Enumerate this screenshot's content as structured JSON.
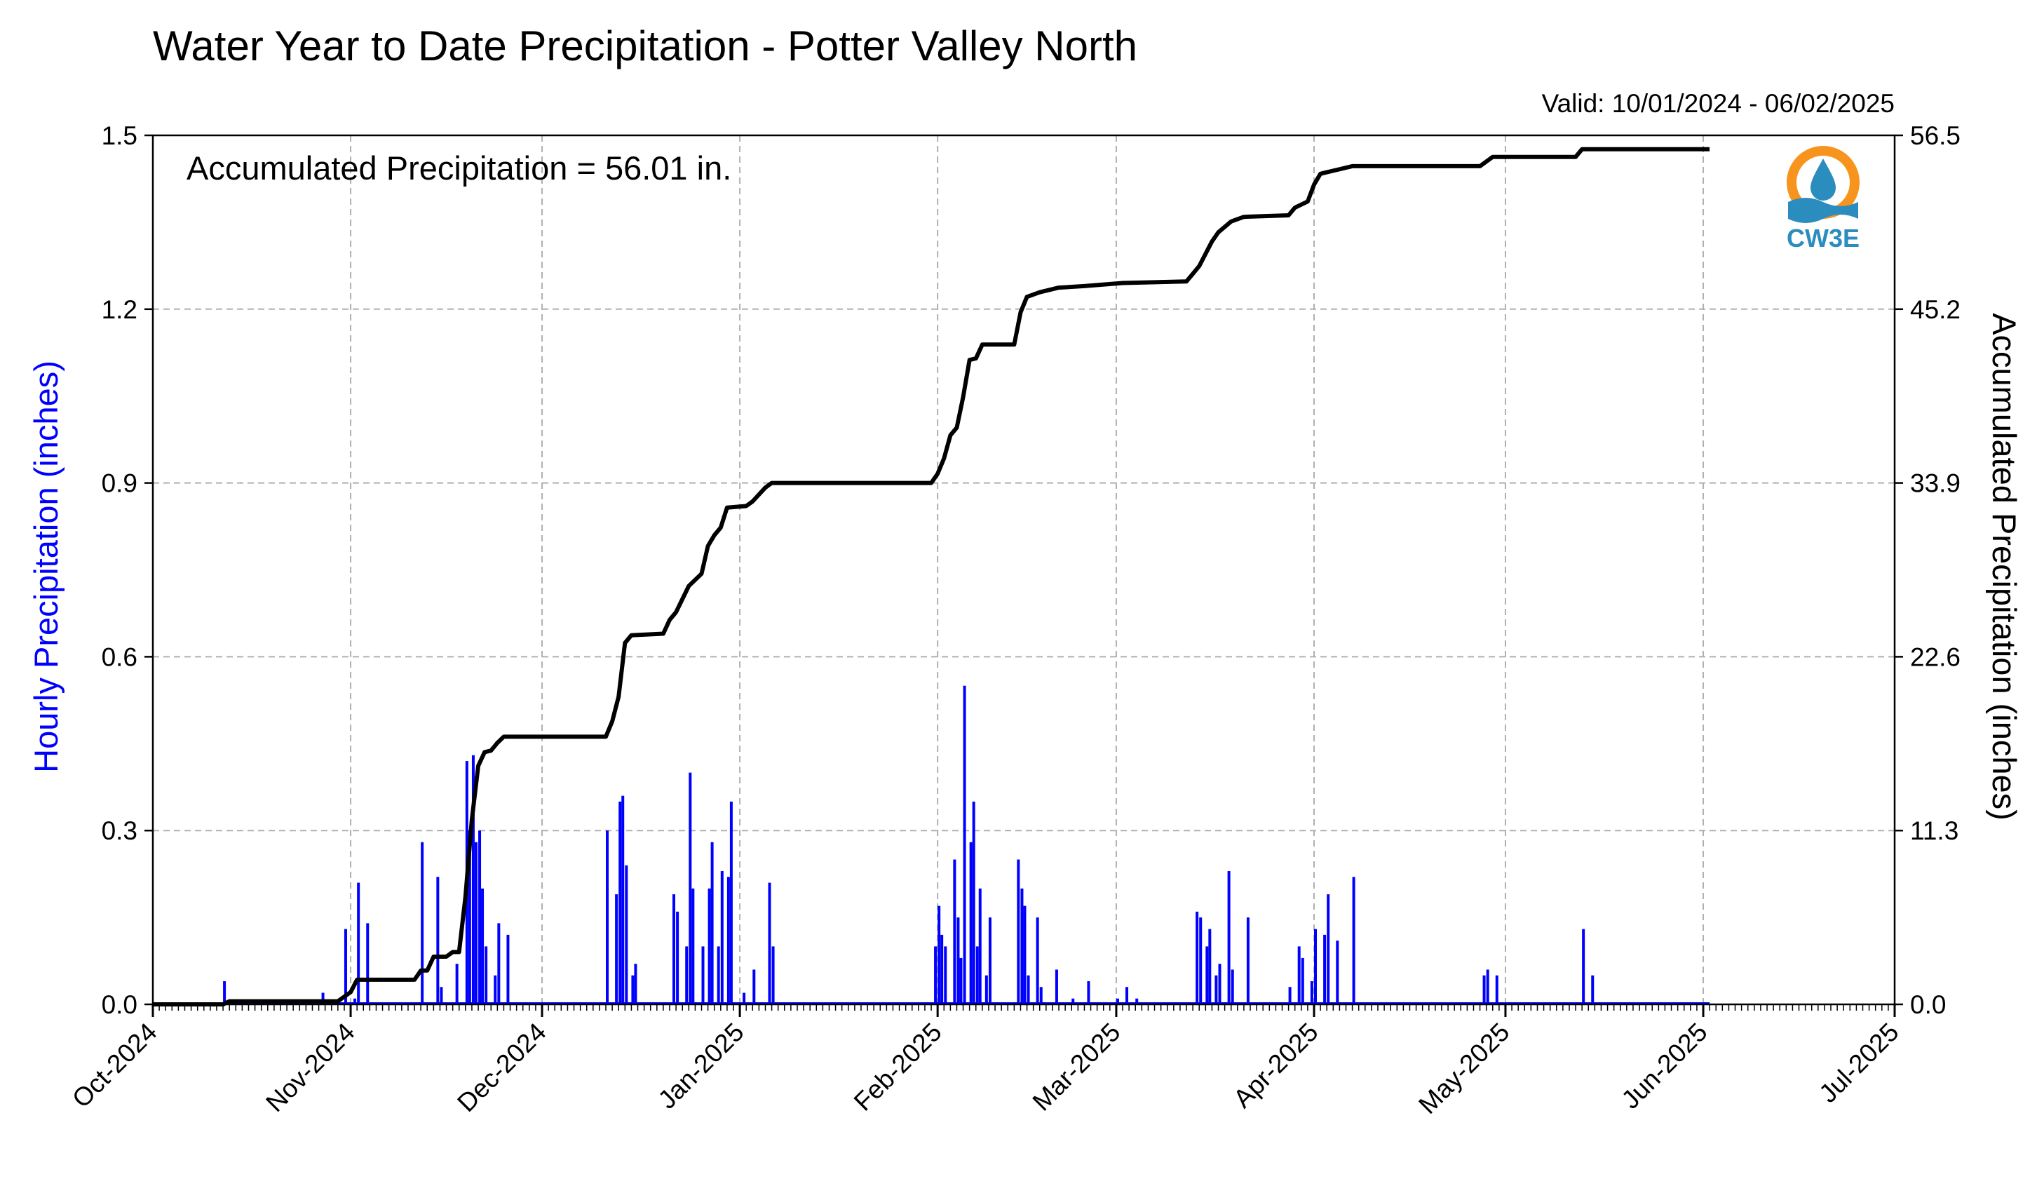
{
  "header": {
    "title": "Water Year to Date Precipitation - Potter Valley North",
    "valid": "Valid: 10/01/2024 - 06/02/2025"
  },
  "annotation": "Accumulated Precipitation = 56.01 in.",
  "logo": {
    "text": "CW3E",
    "icon": "water-drop-sun-logo",
    "colors": [
      "#f7941d",
      "#2b8cbe"
    ]
  },
  "chart_data": {
    "type": "bar",
    "title": "Water Year to Date Precipitation - Potter Valley North",
    "x_start": "2024-10-01",
    "x_end": "2025-07-01",
    "x_tick_labels": [
      "Oct-2024",
      "Nov-2024",
      "Dec-2024",
      "Jan-2025",
      "Feb-2025",
      "Mar-2025",
      "Apr-2025",
      "May-2025",
      "Jun-2025",
      "Jul-2025"
    ],
    "ylabel_left": "Hourly Precipitation (inches)",
    "ylabel_right": "Accumulated Precipitation (inches)",
    "ylim_left": [
      0,
      1.5
    ],
    "ylim_right": [
      0,
      56.5
    ],
    "y_left_ticks": [
      "0.0",
      "0.3",
      "0.6",
      "0.9",
      "1.2",
      "1.5"
    ],
    "y_right_ticks": [
      "0.0",
      "11.3",
      "22.6",
      "33.9",
      "45.2",
      "56.5"
    ],
    "grid": true,
    "colors": {
      "hourly": "#0000ff",
      "accumulated": "#000000",
      "left_label": "#0000ff"
    },
    "series": [
      {
        "name": "Hourly Precipitation",
        "type": "bar",
        "axis": "left",
        "points": [
          [
            "2024-10-12",
            0.04
          ],
          [
            "2024-10-27",
            0.02
          ],
          [
            "2024-10-31",
            0.13
          ],
          [
            "2024-11-01",
            0.01
          ],
          [
            "2024-11-02",
            0.21
          ],
          [
            "2024-11-03",
            0.14
          ],
          [
            "2024-11-12",
            0.28
          ],
          [
            "2024-11-14",
            0.22
          ],
          [
            "2024-11-15",
            0.03
          ],
          [
            "2024-11-17",
            0.07
          ],
          [
            "2024-11-19",
            0.42
          ],
          [
            "2024-11-19",
            0.3
          ],
          [
            "2024-11-20",
            0.43
          ],
          [
            "2024-11-20",
            0.28
          ],
          [
            "2024-11-21",
            0.3
          ],
          [
            "2024-11-21",
            0.2
          ],
          [
            "2024-11-22",
            0.1
          ],
          [
            "2024-11-23",
            0.05
          ],
          [
            "2024-11-24",
            0.14
          ],
          [
            "2024-11-25",
            0.12
          ],
          [
            "2024-12-11",
            0.3
          ],
          [
            "2024-12-12",
            0.19
          ],
          [
            "2024-12-13",
            0.35
          ],
          [
            "2024-12-13",
            0.36
          ],
          [
            "2024-12-14",
            0.24
          ],
          [
            "2024-12-15",
            0.07
          ],
          [
            "2024-12-15",
            0.05
          ],
          [
            "2024-12-21",
            0.19
          ],
          [
            "2024-12-22",
            0.16
          ],
          [
            "2024-12-23",
            0.1
          ],
          [
            "2024-12-24",
            0.4
          ],
          [
            "2024-12-24",
            0.2
          ],
          [
            "2024-12-26",
            0.1
          ],
          [
            "2024-12-27",
            0.28
          ],
          [
            "2024-12-27",
            0.2
          ],
          [
            "2024-12-28",
            0.1
          ],
          [
            "2024-12-29",
            0.23
          ],
          [
            "2024-12-30",
            0.35
          ],
          [
            "2024-12-30",
            0.22
          ],
          [
            "2025-01-01",
            0.02
          ],
          [
            "2025-01-03",
            0.06
          ],
          [
            "2025-01-05",
            0.21
          ],
          [
            "2025-01-06",
            0.1
          ],
          [
            "2025-01-31",
            0.1
          ],
          [
            "2025-02-01",
            0.17
          ],
          [
            "2025-02-01",
            0.12
          ],
          [
            "2025-02-02",
            0.1
          ],
          [
            "2025-02-03",
            0.25
          ],
          [
            "2025-02-04",
            0.15
          ],
          [
            "2025-02-04",
            0.08
          ],
          [
            "2025-02-05",
            0.55
          ],
          [
            "2025-02-06",
            0.35
          ],
          [
            "2025-02-06",
            0.28
          ],
          [
            "2025-02-07",
            0.2
          ],
          [
            "2025-02-07",
            0.1
          ],
          [
            "2025-02-08",
            0.05
          ],
          [
            "2025-02-09",
            0.15
          ],
          [
            "2025-02-13",
            0.25
          ],
          [
            "2025-02-14",
            0.2
          ],
          [
            "2025-02-14",
            0.17
          ],
          [
            "2025-02-15",
            0.05
          ],
          [
            "2025-02-16",
            0.15
          ],
          [
            "2025-02-17",
            0.03
          ],
          [
            "2025-02-19",
            0.06
          ],
          [
            "2025-02-22",
            0.01
          ],
          [
            "2025-02-24",
            0.04
          ],
          [
            "2025-03-01",
            0.01
          ],
          [
            "2025-03-02",
            0.03
          ],
          [
            "2025-03-04",
            0.01
          ],
          [
            "2025-03-13",
            0.16
          ],
          [
            "2025-03-14",
            0.15
          ],
          [
            "2025-03-15",
            0.13
          ],
          [
            "2025-03-15",
            0.1
          ],
          [
            "2025-03-16",
            0.05
          ],
          [
            "2025-03-17",
            0.07
          ],
          [
            "2025-03-18",
            0.23
          ],
          [
            "2025-03-19",
            0.06
          ],
          [
            "2025-03-21",
            0.15
          ],
          [
            "2025-03-28",
            0.03
          ],
          [
            "2025-03-29",
            0.1
          ],
          [
            "2025-03-30",
            0.08
          ],
          [
            "2025-03-31",
            0.04
          ],
          [
            "2025-04-01",
            0.13
          ],
          [
            "2025-04-02",
            0.12
          ],
          [
            "2025-04-03",
            0.19
          ],
          [
            "2025-04-04",
            0.11
          ],
          [
            "2025-04-07",
            0.22
          ],
          [
            "2025-04-27",
            0.05
          ],
          [
            "2025-04-28",
            0.06
          ],
          [
            "2025-04-29",
            0.05
          ],
          [
            "2025-05-13",
            0.13
          ],
          [
            "2025-05-14",
            0.05
          ]
        ]
      },
      {
        "name": "Accumulated Precipitation",
        "type": "line",
        "axis": "right",
        "points": [
          [
            "2024-10-01",
            0.0
          ],
          [
            "2024-10-12",
            0.0
          ],
          [
            "2024-10-13",
            0.2
          ],
          [
            "2024-10-30",
            0.2
          ],
          [
            "2024-11-01",
            0.8
          ],
          [
            "2024-11-02",
            1.6
          ],
          [
            "2024-11-11",
            1.6
          ],
          [
            "2024-11-12",
            2.2
          ],
          [
            "2024-11-13",
            2.2
          ],
          [
            "2024-11-14",
            3.1
          ],
          [
            "2024-11-16",
            3.1
          ],
          [
            "2024-11-17",
            3.4
          ],
          [
            "2024-11-18",
            3.4
          ],
          [
            "2024-11-19",
            7.0
          ],
          [
            "2024-11-20",
            12.0
          ],
          [
            "2024-11-21",
            15.5
          ],
          [
            "2024-11-22",
            16.4
          ],
          [
            "2024-11-23",
            16.5
          ],
          [
            "2024-11-24",
            17.0
          ],
          [
            "2024-11-25",
            17.4
          ],
          [
            "2024-12-11",
            17.4
          ],
          [
            "2024-12-12",
            18.4
          ],
          [
            "2024-12-13",
            20.0
          ],
          [
            "2024-12-14",
            23.5
          ],
          [
            "2024-12-15",
            24.0
          ],
          [
            "2024-12-20",
            24.1
          ],
          [
            "2024-12-21",
            25.0
          ],
          [
            "2024-12-22",
            25.5
          ],
          [
            "2024-12-24",
            27.2
          ],
          [
            "2024-12-26",
            28.0
          ],
          [
            "2024-12-27",
            29.8
          ],
          [
            "2024-12-28",
            30.5
          ],
          [
            "2024-12-29",
            31.0
          ],
          [
            "2024-12-30",
            32.3
          ],
          [
            "2025-01-02",
            32.4
          ],
          [
            "2025-01-03",
            32.7
          ],
          [
            "2025-01-05",
            33.6
          ],
          [
            "2025-01-06",
            33.9
          ],
          [
            "2025-01-31",
            33.9
          ],
          [
            "2025-02-01",
            34.5
          ],
          [
            "2025-02-02",
            35.5
          ],
          [
            "2025-02-03",
            37.0
          ],
          [
            "2025-02-04",
            37.5
          ],
          [
            "2025-02-05",
            39.5
          ],
          [
            "2025-02-06",
            41.9
          ],
          [
            "2025-02-07",
            42.0
          ],
          [
            "2025-02-08",
            42.9
          ],
          [
            "2025-02-13",
            42.9
          ],
          [
            "2025-02-14",
            45.0
          ],
          [
            "2025-02-15",
            46.0
          ],
          [
            "2025-02-17",
            46.3
          ],
          [
            "2025-02-20",
            46.6
          ],
          [
            "2025-02-24",
            46.7
          ],
          [
            "2025-03-02",
            46.9
          ],
          [
            "2025-03-12",
            47.0
          ],
          [
            "2025-03-13",
            47.5
          ],
          [
            "2025-03-14",
            48.0
          ],
          [
            "2025-03-15",
            48.8
          ],
          [
            "2025-03-16",
            49.6
          ],
          [
            "2025-03-17",
            50.2
          ],
          [
            "2025-03-19",
            50.9
          ],
          [
            "2025-03-21",
            51.2
          ],
          [
            "2025-03-28",
            51.3
          ],
          [
            "2025-03-29",
            51.8
          ],
          [
            "2025-03-31",
            52.2
          ],
          [
            "2025-04-01",
            53.3
          ],
          [
            "2025-04-02",
            54.0
          ],
          [
            "2025-04-03",
            54.1
          ],
          [
            "2025-04-07",
            54.5
          ],
          [
            "2025-04-27",
            54.5
          ],
          [
            "2025-04-28",
            54.8
          ],
          [
            "2025-04-29",
            55.1
          ],
          [
            "2025-05-12",
            55.1
          ],
          [
            "2025-05-13",
            55.6
          ],
          [
            "2025-06-02",
            55.6
          ]
        ]
      }
    ]
  }
}
